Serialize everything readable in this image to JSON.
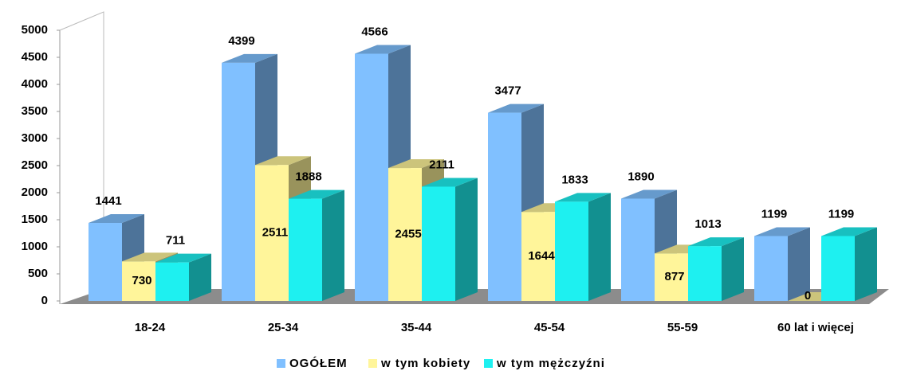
{
  "chart_data": {
    "type": "bar3d",
    "categories": [
      "18-24",
      "25-34",
      "35-44",
      "45-54",
      "55-59",
      "60 lat i więcej"
    ],
    "series": [
      {
        "name": "OGÓŁEM",
        "color": "#80c0ff",
        "values": [
          1441,
          4399,
          4566,
          3477,
          1890,
          1199
        ]
      },
      {
        "name": "w tym kobiety",
        "color": "#fff59a",
        "values": [
          730,
          2511,
          2455,
          1644,
          877,
          0
        ]
      },
      {
        "name": "w tym mężczyźni",
        "color": "#1ef0f0",
        "values": [
          711,
          1888,
          2111,
          1833,
          1013,
          1199
        ]
      }
    ],
    "ylim": [
      0,
      5000
    ],
    "yticks": [
      0,
      500,
      1000,
      1500,
      2000,
      2500,
      3000,
      3500,
      4000,
      4500,
      5000
    ],
    "legend": "bottom"
  }
}
